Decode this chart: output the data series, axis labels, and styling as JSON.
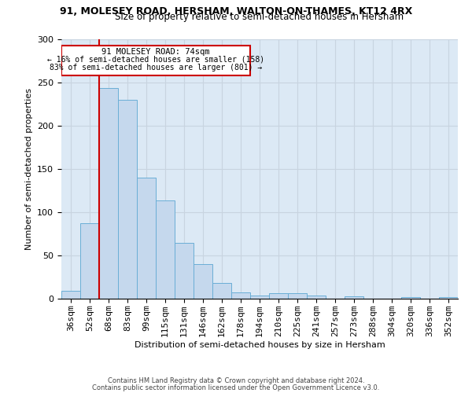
{
  "title1": "91, MOLESEY ROAD, HERSHAM, WALTON-ON-THAMES, KT12 4RX",
  "title2": "Size of property relative to semi-detached houses in Hersham",
  "xlabel": "Distribution of semi-detached houses by size in Hersham",
  "ylabel": "Number of semi-detached properties",
  "categories": [
    "36sqm",
    "52sqm",
    "68sqm",
    "83sqm",
    "99sqm",
    "115sqm",
    "131sqm",
    "146sqm",
    "162sqm",
    "178sqm",
    "194sqm",
    "210sqm",
    "225sqm",
    "241sqm",
    "257sqm",
    "273sqm",
    "288sqm",
    "304sqm",
    "320sqm",
    "336sqm",
    "352sqm"
  ],
  "values": [
    9,
    87,
    244,
    230,
    140,
    114,
    65,
    40,
    18,
    7,
    4,
    6,
    6,
    4,
    0,
    3,
    0,
    0,
    2,
    0,
    2
  ],
  "bar_color": "#c5d8ed",
  "bar_edge_color": "#6aaed6",
  "highlight_label": "91 MOLESEY ROAD: 74sqm",
  "pct_smaller": "16% of semi-detached houses are smaller (158)",
  "pct_larger": "83% of semi-detached houses are larger (801)",
  "vline_color": "#cc0000",
  "vline_x": 1.5,
  "annotation_box_color": "#cc0000",
  "footer1": "Contains HM Land Registry data © Crown copyright and database right 2024.",
  "footer2": "Contains public sector information licensed under the Open Government Licence v3.0.",
  "ylim": [
    0,
    300
  ],
  "yticks": [
    0,
    50,
    100,
    150,
    200,
    250,
    300
  ],
  "grid_color": "#c8d4e0",
  "background_color": "#dce9f5"
}
